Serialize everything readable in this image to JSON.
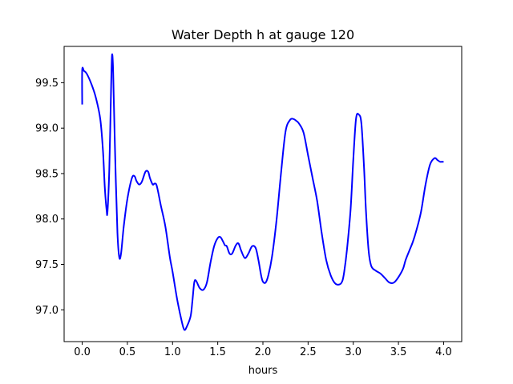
{
  "chart_data": {
    "type": "line",
    "title": "Water Depth h at gauge 120",
    "xlabel": "hours",
    "ylabel": "",
    "xlim": [
      -0.2,
      4.2
    ],
    "ylim": [
      96.65,
      99.9
    ],
    "xticks": [
      0.0,
      0.5,
      1.0,
      1.5,
      2.0,
      2.5,
      3.0,
      3.5,
      4.0
    ],
    "xtick_labels": [
      "0.0",
      "0.5",
      "1.0",
      "1.5",
      "2.0",
      "2.5",
      "3.0",
      "3.5",
      "4.0"
    ],
    "yticks": [
      97.0,
      97.5,
      98.0,
      98.5,
      99.0,
      99.5
    ],
    "ytick_labels": [
      "97.0",
      "97.5",
      "98.0",
      "98.5",
      "99.0",
      "99.5"
    ],
    "grid": false,
    "legend": "none",
    "series": [
      {
        "color": "#0000ff",
        "x": [
          0.0,
          0.0,
          0.02,
          0.05,
          0.1,
          0.15,
          0.2,
          0.23,
          0.25,
          0.27,
          0.28,
          0.3,
          0.32,
          0.33,
          0.34,
          0.35,
          0.37,
          0.39,
          0.41,
          0.43,
          0.46,
          0.5,
          0.55,
          0.58,
          0.6,
          0.63,
          0.66,
          0.7,
          0.73,
          0.75,
          0.78,
          0.8,
          0.82,
          0.84,
          0.87,
          0.92,
          0.97,
          1.0,
          1.05,
          1.1,
          1.13,
          1.16,
          1.2,
          1.22,
          1.24,
          1.26,
          1.3,
          1.34,
          1.38,
          1.42,
          1.46,
          1.5,
          1.53,
          1.56,
          1.58,
          1.6,
          1.63,
          1.66,
          1.7,
          1.73,
          1.76,
          1.8,
          1.84,
          1.88,
          1.92,
          1.95,
          1.98,
          2.0,
          2.03,
          2.06,
          2.1,
          2.15,
          2.2,
          2.25,
          2.3,
          2.34,
          2.37,
          2.4,
          2.45,
          2.5,
          2.55,
          2.6,
          2.65,
          2.7,
          2.75,
          2.8,
          2.85,
          2.88,
          2.9,
          2.93,
          2.97,
          3.0,
          3.03,
          3.06,
          3.09,
          3.12,
          3.14,
          3.17,
          3.2,
          3.25,
          3.3,
          3.35,
          3.4,
          3.45,
          3.5,
          3.55,
          3.58,
          3.62,
          3.66,
          3.7,
          3.75,
          3.8,
          3.85,
          3.9,
          3.93,
          3.96,
          3.98,
          4.0
        ],
        "y": [
          99.26,
          99.64,
          99.63,
          99.6,
          99.49,
          99.34,
          99.1,
          98.75,
          98.35,
          98.1,
          98.08,
          98.55,
          99.45,
          99.8,
          99.7,
          99.3,
          98.5,
          97.85,
          97.58,
          97.62,
          97.92,
          98.22,
          98.45,
          98.47,
          98.42,
          98.38,
          98.41,
          98.52,
          98.52,
          98.45,
          98.38,
          98.39,
          98.38,
          98.3,
          98.15,
          97.92,
          97.58,
          97.42,
          97.12,
          96.88,
          96.78,
          96.82,
          96.93,
          97.1,
          97.3,
          97.32,
          97.24,
          97.22,
          97.3,
          97.52,
          97.7,
          97.79,
          97.8,
          97.75,
          97.71,
          97.7,
          97.62,
          97.62,
          97.71,
          97.73,
          97.65,
          97.57,
          97.62,
          97.7,
          97.68,
          97.55,
          97.38,
          97.31,
          97.3,
          97.38,
          97.58,
          97.98,
          98.5,
          98.96,
          99.09,
          99.1,
          99.08,
          99.05,
          98.95,
          98.7,
          98.45,
          98.2,
          97.85,
          97.55,
          97.38,
          97.29,
          97.28,
          97.32,
          97.42,
          97.66,
          98.1,
          98.65,
          99.1,
          99.15,
          99.05,
          98.55,
          98.1,
          97.65,
          97.48,
          97.43,
          97.4,
          97.35,
          97.3,
          97.3,
          97.36,
          97.45,
          97.55,
          97.65,
          97.75,
          97.88,
          98.08,
          98.38,
          98.6,
          98.67,
          98.65,
          98.63,
          98.63,
          98.63
        ]
      }
    ]
  }
}
